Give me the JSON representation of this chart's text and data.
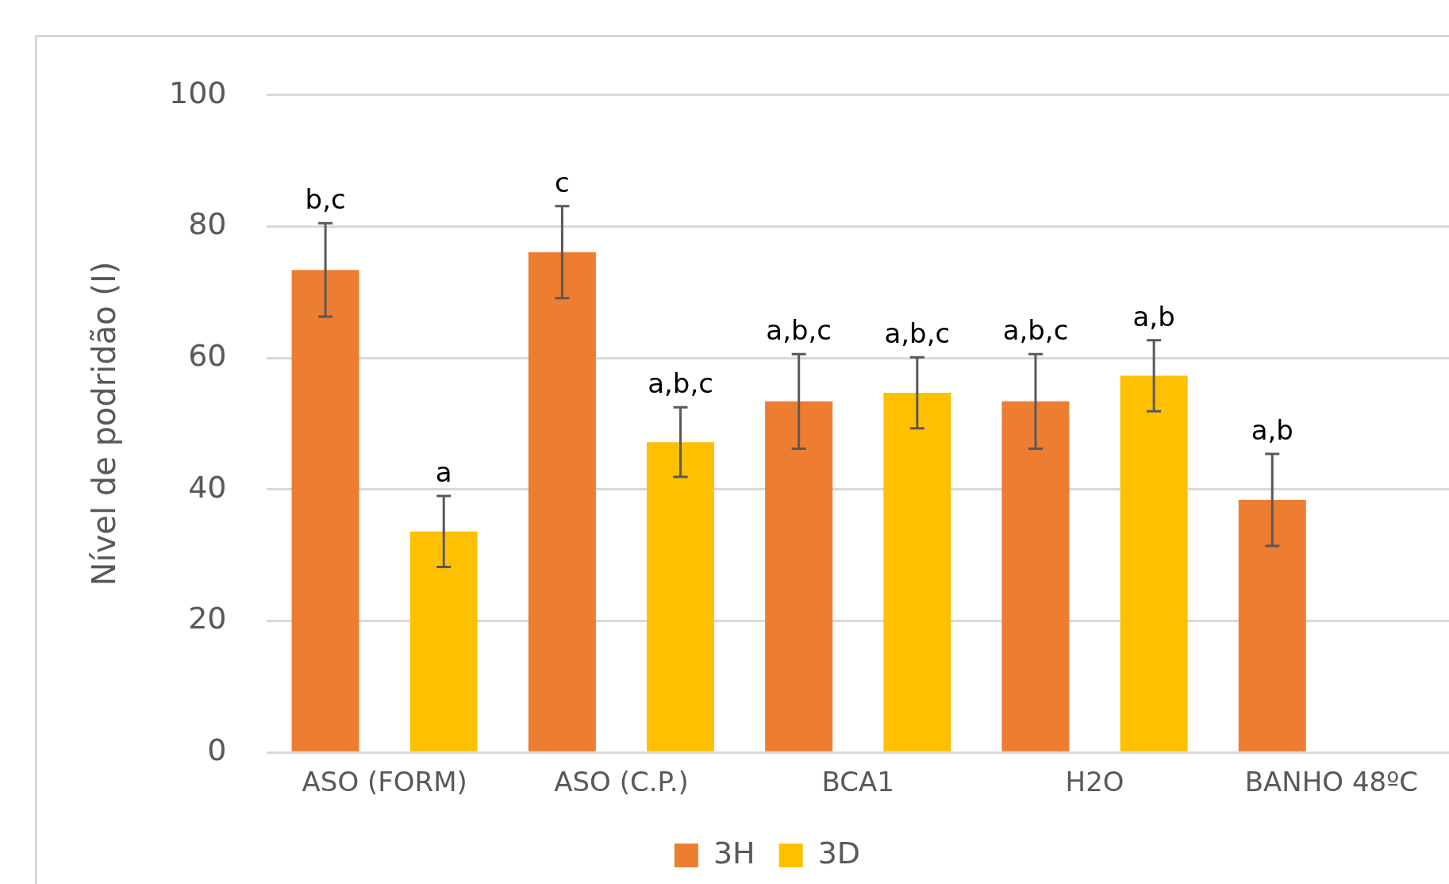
{
  "chart_data": {
    "type": "bar",
    "ylabel": "Nível de podridão (I)",
    "categories": [
      "ASO (FORM)",
      "ASO (C.P.)",
      "BCA1",
      "H2O",
      "BANHO 48ºC"
    ],
    "series": [
      {
        "name": "3H",
        "color": "#ed7d31",
        "values": [
          73.4,
          76.1,
          53.4,
          53.4,
          38.4
        ],
        "errors": [
          7.1,
          7,
          7.2,
          7.2,
          7
        ]
      },
      {
        "name": "3D",
        "color": "#ffc000",
        "values": [
          33.6,
          47.2,
          54.7,
          57.3,
          null
        ],
        "errors": [
          5.4,
          5.3,
          5.4,
          5.4,
          null
        ]
      }
    ],
    "ylim": [
      0,
      100
    ],
    "yticks": [
      0,
      20,
      40,
      60,
      80,
      100
    ],
    "grid": "y",
    "legend": "bottom",
    "annotations": [
      "b,c",
      "a",
      "c",
      "a,b,c",
      "a,b,c",
      "a,b,c",
      "a,b,c",
      "a,b",
      "a,b"
    ]
  }
}
